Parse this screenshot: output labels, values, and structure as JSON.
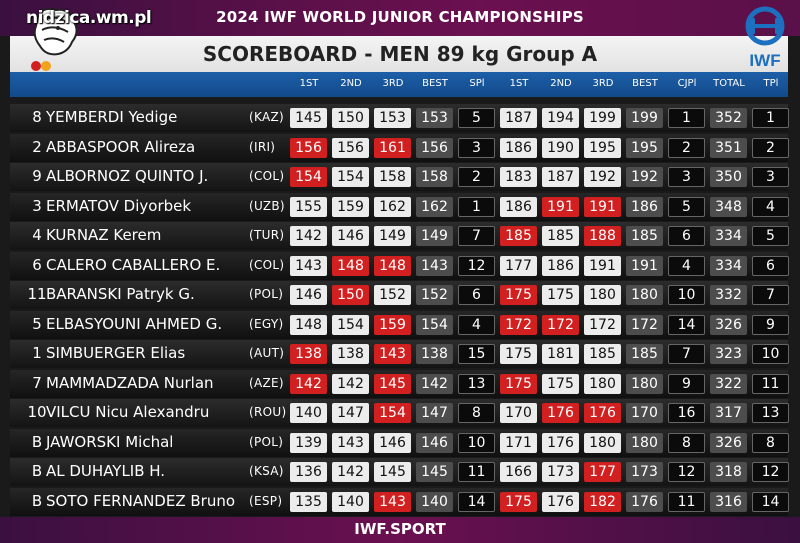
{
  "header": {
    "event_title": "2024 IWF WORLD JUNIOR CHAMPIONSHIPS",
    "scoreboard_title": "SCOREBOARD - MEN 89 kg Group A",
    "watermark": "nidzica.wm.pl",
    "logo_text": "IWF"
  },
  "columns": [
    "1ST",
    "2ND",
    "3RD",
    "BEST",
    "SPl",
    "1ST",
    "2ND",
    "3RD",
    "BEST",
    "CJPl",
    "TOTAL",
    "TPl"
  ],
  "rows": [
    {
      "rank": "8",
      "name": "YEMBERDI Yedige",
      "nation": "(KAZ)",
      "sn": [
        "145",
        "150",
        "153"
      ],
      "sn_fail": [
        false,
        false,
        false
      ],
      "sn_best": "153",
      "spl": "5",
      "cj": [
        "187",
        "194",
        "199"
      ],
      "cj_fail": [
        false,
        false,
        false
      ],
      "cj_best": "199",
      "cjpl": "1",
      "total": "352",
      "tpl": "1"
    },
    {
      "rank": "2",
      "name": "ABBASPOOR Alireza",
      "nation": "(IRI)",
      "sn": [
        "156",
        "156",
        "161"
      ],
      "sn_fail": [
        true,
        false,
        true
      ],
      "sn_best": "156",
      "spl": "3",
      "cj": [
        "186",
        "190",
        "195"
      ],
      "cj_fail": [
        false,
        false,
        false
      ],
      "cj_best": "195",
      "cjpl": "2",
      "total": "351",
      "tpl": "2"
    },
    {
      "rank": "9",
      "name": "ALBORNOZ QUINTO J.",
      "nation": "(COL)",
      "sn": [
        "154",
        "154",
        "158"
      ],
      "sn_fail": [
        true,
        false,
        false
      ],
      "sn_best": "158",
      "spl": "2",
      "cj": [
        "183",
        "187",
        "192"
      ],
      "cj_fail": [
        false,
        false,
        false
      ],
      "cj_best": "192",
      "cjpl": "3",
      "total": "350",
      "tpl": "3"
    },
    {
      "rank": "3",
      "name": "ERMATOV Diyorbek",
      "nation": "(UZB)",
      "sn": [
        "155",
        "159",
        "162"
      ],
      "sn_fail": [
        false,
        false,
        false
      ],
      "sn_best": "162",
      "spl": "1",
      "cj": [
        "186",
        "191",
        "191"
      ],
      "cj_fail": [
        false,
        true,
        true
      ],
      "cj_best": "186",
      "cjpl": "5",
      "total": "348",
      "tpl": "4"
    },
    {
      "rank": "4",
      "name": "KURNAZ Kerem",
      "nation": "(TUR)",
      "sn": [
        "142",
        "146",
        "149"
      ],
      "sn_fail": [
        false,
        false,
        false
      ],
      "sn_best": "149",
      "spl": "7",
      "cj": [
        "185",
        "185",
        "188"
      ],
      "cj_fail": [
        true,
        false,
        true
      ],
      "cj_best": "185",
      "cjpl": "6",
      "total": "334",
      "tpl": "5"
    },
    {
      "rank": "6",
      "name": "CALERO CABALLERO E.",
      "nation": "(COL)",
      "sn": [
        "143",
        "148",
        "148"
      ],
      "sn_fail": [
        false,
        true,
        true
      ],
      "sn_best": "143",
      "spl": "12",
      "cj": [
        "177",
        "186",
        "191"
      ],
      "cj_fail": [
        false,
        false,
        false
      ],
      "cj_best": "191",
      "cjpl": "4",
      "total": "334",
      "tpl": "6"
    },
    {
      "rank": "11",
      "name": "BARANSKI Patryk G.",
      "nation": "(POL)",
      "sn": [
        "146",
        "150",
        "152"
      ],
      "sn_fail": [
        false,
        true,
        false
      ],
      "sn_best": "152",
      "spl": "6",
      "cj": [
        "175",
        "175",
        "180"
      ],
      "cj_fail": [
        true,
        false,
        false
      ],
      "cj_best": "180",
      "cjpl": "10",
      "total": "332",
      "tpl": "7"
    },
    {
      "rank": "5",
      "name": "ELBASYOUNI AHMED G.",
      "nation": "(EGY)",
      "sn": [
        "148",
        "154",
        "159"
      ],
      "sn_fail": [
        false,
        false,
        true
      ],
      "sn_best": "154",
      "spl": "4",
      "cj": [
        "172",
        "172",
        "172"
      ],
      "cj_fail": [
        true,
        true,
        false
      ],
      "cj_best": "172",
      "cjpl": "14",
      "total": "326",
      "tpl": "9"
    },
    {
      "rank": "1",
      "name": "SIMBUERGER Elias",
      "nation": "(AUT)",
      "sn": [
        "138",
        "138",
        "143"
      ],
      "sn_fail": [
        true,
        false,
        true
      ],
      "sn_best": "138",
      "spl": "15",
      "cj": [
        "175",
        "181",
        "185"
      ],
      "cj_fail": [
        false,
        false,
        false
      ],
      "cj_best": "185",
      "cjpl": "7",
      "total": "323",
      "tpl": "10"
    },
    {
      "rank": "7",
      "name": "MAMMADZADA Nurlan",
      "nation": "(AZE)",
      "sn": [
        "142",
        "142",
        "145"
      ],
      "sn_fail": [
        true,
        false,
        true
      ],
      "sn_best": "142",
      "spl": "13",
      "cj": [
        "175",
        "175",
        "180"
      ],
      "cj_fail": [
        true,
        false,
        false
      ],
      "cj_best": "180",
      "cjpl": "9",
      "total": "322",
      "tpl": "11"
    },
    {
      "rank": "10",
      "name": "VILCU Nicu Alexandru",
      "nation": "(ROU)",
      "sn": [
        "140",
        "147",
        "154"
      ],
      "sn_fail": [
        false,
        false,
        true
      ],
      "sn_best": "147",
      "spl": "8",
      "cj": [
        "170",
        "176",
        "176"
      ],
      "cj_fail": [
        false,
        true,
        true
      ],
      "cj_best": "170",
      "cjpl": "16",
      "total": "317",
      "tpl": "13"
    },
    {
      "rank": "B",
      "name": "JAWORSKI Michal",
      "nation": "(POL)",
      "sn": [
        "139",
        "143",
        "146"
      ],
      "sn_fail": [
        false,
        false,
        false
      ],
      "sn_best": "146",
      "spl": "10",
      "cj": [
        "171",
        "176",
        "180"
      ],
      "cj_fail": [
        false,
        false,
        false
      ],
      "cj_best": "180",
      "cjpl": "8",
      "total": "326",
      "tpl": "8"
    },
    {
      "rank": "B",
      "name": "AL DUHAYLIB H.",
      "nation": "(KSA)",
      "sn": [
        "136",
        "142",
        "145"
      ],
      "sn_fail": [
        false,
        false,
        false
      ],
      "sn_best": "145",
      "spl": "11",
      "cj": [
        "166",
        "173",
        "177"
      ],
      "cj_fail": [
        false,
        false,
        true
      ],
      "cj_best": "173",
      "cjpl": "12",
      "total": "318",
      "tpl": "12"
    },
    {
      "rank": "B",
      "name": "SOTO FERNANDEZ Bruno",
      "nation": "(ESP)",
      "sn": [
        "135",
        "140",
        "143"
      ],
      "sn_fail": [
        false,
        false,
        true
      ],
      "sn_best": "140",
      "spl": "14",
      "cj": [
        "175",
        "176",
        "182"
      ],
      "cj_fail": [
        true,
        false,
        true
      ],
      "cj_best": "176",
      "cjpl": "11",
      "total": "316",
      "tpl": "14"
    }
  ],
  "footer": {
    "text": "IWF.SPORT"
  },
  "colors": {
    "banner": "#5a1048",
    "header_strip": "#1d5fa8",
    "fail": "#d21f1f",
    "cell": "#ececec",
    "best": "#4d4d4d"
  }
}
